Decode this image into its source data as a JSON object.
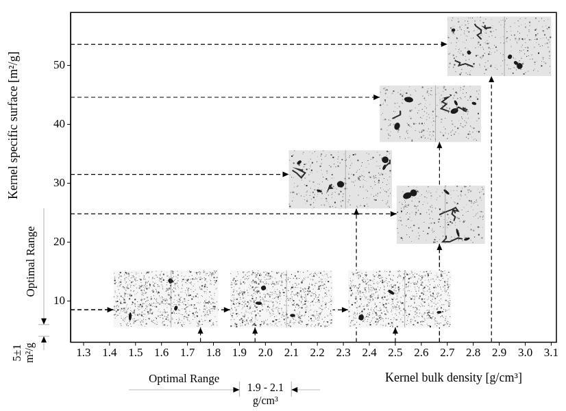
{
  "chart_data": {
    "type": "scatter",
    "x_label": "Kernel bulk density [g/cm³]",
    "y_label": "Kernel specific surface [m²/g]",
    "x": [
      1.75,
      1.96,
      2.35,
      2.5,
      2.67,
      2.67,
      2.87
    ],
    "values": [
      8.5,
      8.5,
      31.5,
      8.5,
      24.8,
      44.6,
      53.6
    ],
    "color": "#000000",
    "marker": "arrow",
    "line_style": "dashed",
    "xlim": [
      1.25,
      3.12
    ],
    "xticks": [
      1.3,
      1.4,
      1.5,
      1.6,
      1.7,
      1.8,
      1.9,
      {
        "value": 2,
        "label": "2.0"
      },
      2.1,
      2.2,
      2.3,
      2.4,
      2.5,
      2.6,
      2.7,
      2.8,
      2.9,
      {
        "value": 3,
        "label": "3.0"
      },
      3.1
    ],
    "ylim": [
      3,
      59
    ],
    "yticks": [
      10,
      20,
      30,
      40,
      50
    ],
    "grid": false,
    "annotations": [
      {
        "axis": "y",
        "text": "Optimal Range",
        "range_label": [
          "5±1",
          "m²/g"
        ],
        "value": 5,
        "error": 1
      },
      {
        "axis": "x",
        "text": "Optimal Range",
        "range_label": [
          "1.9 - 2.1",
          "g/cm³"
        ],
        "range": [
          1.9,
          2.1
        ]
      }
    ]
  }
}
